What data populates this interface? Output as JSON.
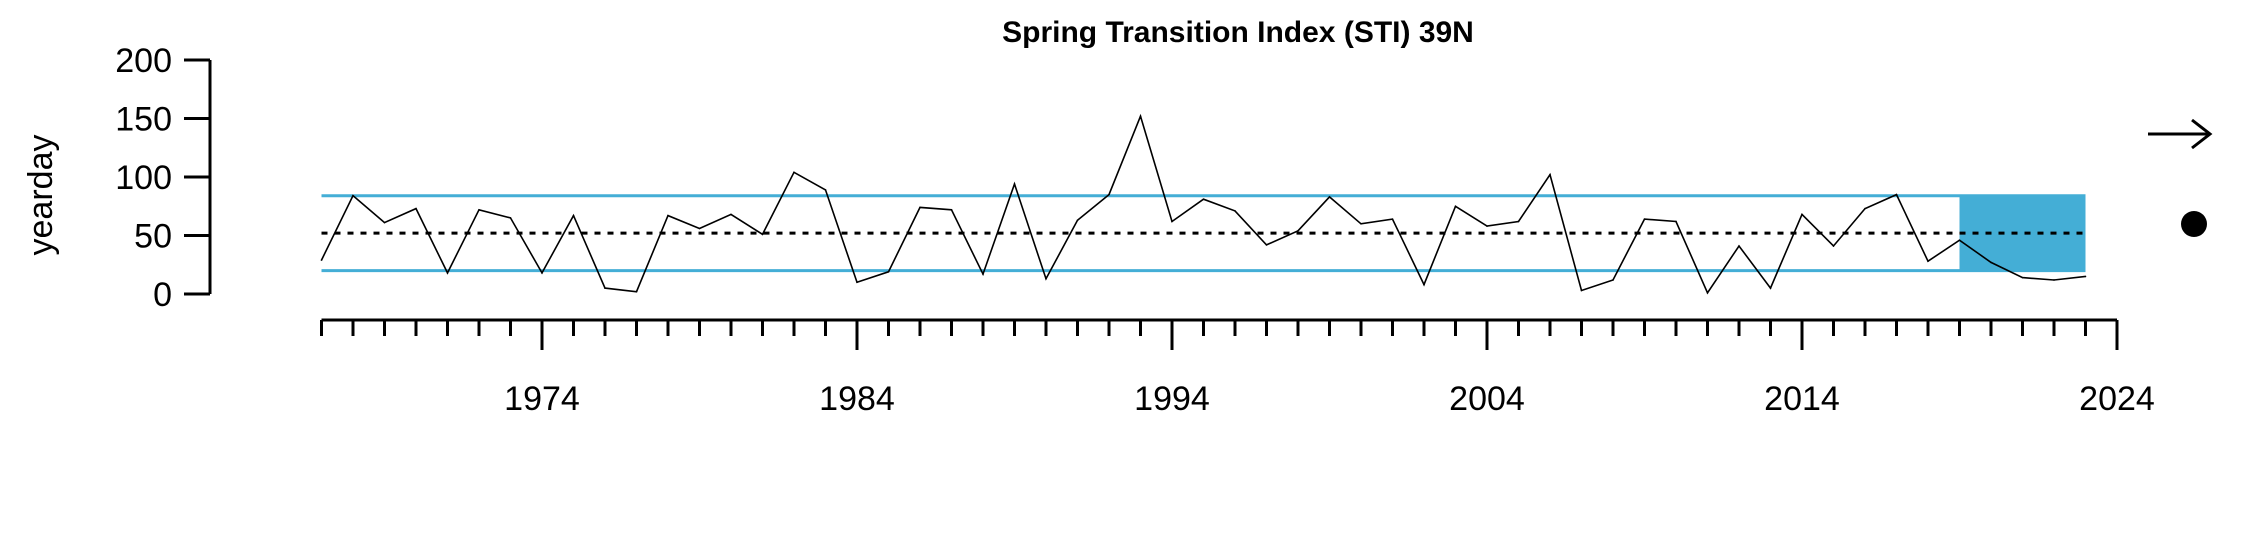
{
  "chart_data": {
    "type": "line",
    "title": "Spring Transition Index (STI) 39N",
    "xlabel": "",
    "ylabel": "yearday",
    "xlim": [
      1966,
      2024
    ],
    "ylim": [
      0,
      200
    ],
    "y_ticks": [
      0,
      50,
      100,
      150,
      200
    ],
    "x_major_ticks": [
      1974,
      1984,
      1994,
      2004,
      2014,
      2024
    ],
    "x_minor_ticks_every": 1,
    "x_minor_range": [
      1967,
      2024
    ],
    "mean": 52,
    "band": {
      "lower": 20,
      "upper": 84
    },
    "recent_window": {
      "start": 2019,
      "end": 2023
    },
    "trend_symbol": "right-arrow",
    "mean_symbol": "filled-circle",
    "colors": {
      "band": "#44aed6",
      "line": "#000000",
      "mean": "#000000"
    },
    "series": [
      {
        "x": [
          1967,
          1968,
          1969,
          1970,
          1971,
          1972,
          1973,
          1974,
          1975,
          1976,
          1977,
          1978,
          1979,
          1980,
          1981,
          1982,
          1983,
          1984,
          1985,
          1986,
          1987,
          1988,
          1989,
          1990,
          1991,
          1992,
          1993,
          1994,
          1995,
          1996,
          1997,
          1998,
          1999,
          2000,
          2001,
          2002,
          2003,
          2004,
          2005,
          2006,
          2007,
          2008,
          2009,
          2010,
          2011,
          2012,
          2013,
          2014,
          2015,
          2016,
          2017,
          2018,
          2019,
          2020,
          2021,
          2022,
          2023
        ],
        "values": [
          29,
          84,
          61,
          73,
          18,
          72,
          65,
          18,
          67,
          5,
          2,
          67,
          56,
          68,
          51,
          104,
          89,
          10,
          19,
          74,
          72,
          17,
          94,
          13,
          63,
          85,
          152,
          62,
          81,
          71,
          42,
          54,
          83,
          60,
          64,
          8,
          75,
          58,
          62,
          102,
          3,
          12,
          64,
          62,
          1,
          41,
          5,
          68,
          41,
          73,
          85,
          28,
          46,
          27,
          14,
          12,
          15
        ]
      }
    ]
  }
}
